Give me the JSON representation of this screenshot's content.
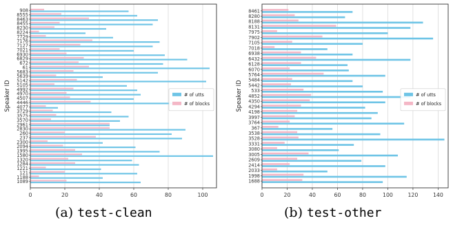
{
  "colors": {
    "utts": "#6ec4e6",
    "blocks": "#f4b7c6",
    "frame": "#333333",
    "grid": "#d4d4d4"
  },
  "captions": [
    {
      "prefix": "(a)",
      "split": "test-clean"
    },
    {
      "prefix": "(b)",
      "split": "test-other"
    }
  ],
  "chart_data": [
    {
      "type": "bar",
      "orientation": "horizontal",
      "ylabel": "Speaker ID",
      "xlim": [
        0,
        108
      ],
      "xticks": [
        0,
        20,
        40,
        60,
        80,
        100
      ],
      "grid": true,
      "legend_position": "center-right",
      "categories": [
        "908",
        "8555",
        "8463",
        "8455",
        "8230",
        "8224",
        "7729",
        "7176",
        "7127",
        "7021",
        "6930",
        "6829",
        "672",
        "61",
        "5683",
        "5639",
        "5142",
        "5105",
        "4992",
        "4970",
        "4507",
        "4446",
        "4077",
        "3729",
        "3575",
        "3570",
        "2961",
        "2830",
        "260",
        "237",
        "2300",
        "2094",
        "1995",
        "1580",
        "1320",
        "1284",
        "1221",
        "121",
        "1188",
        "1089"
      ],
      "series": [
        {
          "name": "# of utts",
          "values": [
            57,
            62,
            74,
            71,
            44,
            32,
            48,
            75,
            71,
            60,
            78,
            91,
            77,
            104,
            74,
            42,
            102,
            56,
            62,
            64,
            60,
            88,
            16,
            47,
            57,
            52,
            46,
            90,
            82,
            88,
            42,
            61,
            75,
            106,
            59,
            63,
            41,
            62,
            42,
            64
          ]
        },
        {
          "name": "# of blocks",
          "values": [
            8,
            18,
            34,
            17,
            14,
            5,
            9,
            36,
            29,
            17,
            21,
            31,
            28,
            34,
            25,
            15,
            27,
            14,
            25,
            21,
            23,
            35,
            9,
            13,
            15,
            12,
            46,
            46,
            20,
            38,
            10,
            19,
            26,
            30,
            22,
            26,
            9,
            20,
            5,
            21
          ]
        }
      ]
    },
    {
      "type": "bar",
      "orientation": "horizontal",
      "ylabel": "Speaker ID",
      "xlim": [
        0,
        148
      ],
      "xticks": [
        0,
        20,
        40,
        60,
        80,
        100,
        120,
        140
      ],
      "grid": true,
      "legend_position": "center-right",
      "categories": [
        "8461",
        "8280",
        "8188",
        "8131",
        "7975",
        "7902",
        "7105",
        "7018",
        "6938",
        "6432",
        "6128",
        "6070",
        "5764",
        "5484",
        "5442",
        "533",
        "4852",
        "4350",
        "4294",
        "4198",
        "3997",
        "3764",
        "367",
        "3538",
        "3528",
        "3331",
        "3080",
        "3005",
        "2609",
        "2414",
        "2033",
        "1998",
        "1688"
      ],
      "series": [
        {
          "name": "# of utts",
          "values": [
            72,
            66,
            128,
            118,
            100,
            136,
            80,
            52,
            72,
            118,
            68,
            69,
            98,
            72,
            80,
            96,
            118,
            98,
            82,
            92,
            87,
            113,
            56,
            94,
            145,
            73,
            61,
            108,
            79,
            98,
            52,
            115,
            96
          ]
        },
        {
          "name": "# of blocks",
          "values": [
            21,
            26,
            29,
            59,
            12,
            48,
            24,
            10,
            31,
            43,
            31,
            22,
            49,
            24,
            23,
            33,
            39,
            38,
            31,
            28,
            26,
            22,
            13,
            28,
            29,
            18,
            12,
            37,
            28,
            22,
            12,
            33,
            32
          ]
        }
      ]
    }
  ]
}
